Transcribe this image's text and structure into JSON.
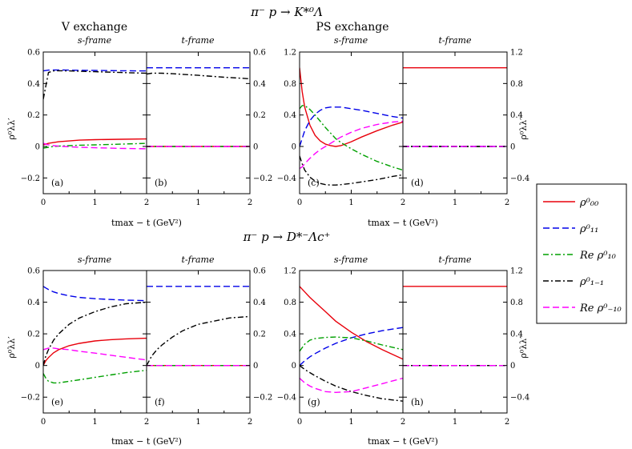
{
  "figure": {
    "title_top": "π⁻ p → K*⁰Λ",
    "title_bottom": "π⁻ p → D*⁻Λc⁺",
    "section_left": "V exchange",
    "section_right": "PS exchange",
    "frame_s": "s-frame",
    "frame_t": "t-frame",
    "ylabel": "ρ⁰λλ′",
    "xlabel": "tmax − t (GeV²)"
  },
  "legend": {
    "items": [
      {
        "label": "ρ⁰₀₀",
        "color": "#e8000b",
        "dash": "solid"
      },
      {
        "label": "ρ⁰₁₁",
        "color": "#0000e8",
        "dash": "dash"
      },
      {
        "label": "Re ρ⁰₁₀",
        "color": "#00a000",
        "dash": "dashdot"
      },
      {
        "label": "ρ⁰₁₋₁",
        "color": "#000000",
        "dash": "dashdot"
      },
      {
        "label": "Re ρ⁰₋₁₀",
        "color": "#ff00ff",
        "dash": "dash"
      }
    ]
  },
  "chart_data": [
    {
      "panel": "(a)",
      "frame": "s-frame",
      "xlim": [
        0,
        2
      ],
      "ylim": [
        -0.3,
        0.6
      ],
      "xticks": [
        0,
        1,
        2
      ],
      "yticks": [
        -0.2,
        0,
        0.2,
        0.4,
        0.6
      ],
      "x": [
        0,
        0.1,
        0.2,
        0.3,
        0.5,
        0.7,
        1.0,
        1.5,
        2.0
      ],
      "series": [
        {
          "values": [
            0.01,
            0.02,
            0.025,
            0.03,
            0.035,
            0.04,
            0.043,
            0.046,
            0.048
          ]
        },
        {
          "values": [
            0.48,
            0.485,
            0.486,
            0.486,
            0.485,
            0.484,
            0.483,
            0.481,
            0.48
          ]
        },
        {
          "values": [
            -0.01,
            -0.005,
            0.0,
            0.002,
            0.005,
            0.008,
            0.01,
            0.015,
            0.02
          ]
        },
        {
          "values": [
            0.3,
            0.47,
            0.48,
            0.481,
            0.48,
            0.478,
            0.475,
            0.47,
            0.465
          ]
        },
        {
          "values": [
            0.02,
            0.01,
            0.005,
            0.002,
            -0.002,
            -0.005,
            -0.008,
            -0.012,
            -0.015
          ]
        }
      ]
    },
    {
      "panel": "(b)",
      "frame": "t-frame",
      "xlim": [
        0,
        2
      ],
      "ylim": [
        -0.3,
        0.6
      ],
      "xticks": [
        1,
        2
      ],
      "yticks": [
        -0.2,
        0,
        0.2,
        0.4,
        0.6
      ],
      "x": [
        0,
        0.1,
        0.2,
        0.3,
        0.5,
        0.7,
        1.0,
        1.5,
        2.0
      ],
      "series": [
        {
          "values": [
            0,
            0,
            0,
            0,
            0,
            0,
            0,
            0,
            0
          ]
        },
        {
          "values": [
            0.5,
            0.5,
            0.5,
            0.5,
            0.5,
            0.5,
            0.5,
            0.5,
            0.5
          ]
        },
        {
          "values": [
            0,
            0,
            0,
            0,
            0,
            0,
            0,
            0,
            0
          ]
        },
        {
          "values": [
            0.46,
            0.465,
            0.466,
            0.465,
            0.462,
            0.458,
            0.452,
            0.44,
            0.43
          ]
        },
        {
          "values": [
            0,
            0,
            0,
            0,
            0,
            0,
            0,
            0,
            0
          ]
        }
      ]
    },
    {
      "panel": "(c)",
      "frame": "s-frame",
      "xlim": [
        0,
        2
      ],
      "ylim": [
        -0.6,
        1.2
      ],
      "xticks": [
        0,
        1,
        2
      ],
      "yticks": [
        -0.4,
        0,
        0.4,
        0.8,
        1.2
      ],
      "x": [
        0,
        0.05,
        0.1,
        0.2,
        0.3,
        0.4,
        0.5,
        0.6,
        0.7,
        0.8,
        1.0,
        1.2,
        1.5,
        1.8,
        2.0
      ],
      "series": [
        {
          "values": [
            1.0,
            0.7,
            0.5,
            0.27,
            0.14,
            0.07,
            0.03,
            0.01,
            0.0,
            0.01,
            0.06,
            0.12,
            0.2,
            0.27,
            0.31
          ]
        },
        {
          "values": [
            0.0,
            0.1,
            0.2,
            0.33,
            0.41,
            0.46,
            0.49,
            0.5,
            0.5,
            0.5,
            0.48,
            0.46,
            0.42,
            0.38,
            0.36
          ]
        },
        {
          "values": [
            0.48,
            0.52,
            0.52,
            0.47,
            0.4,
            0.32,
            0.24,
            0.17,
            0.1,
            0.05,
            -0.03,
            -0.1,
            -0.19,
            -0.26,
            -0.3
          ]
        },
        {
          "values": [
            -0.12,
            -0.22,
            -0.3,
            -0.39,
            -0.44,
            -0.47,
            -0.485,
            -0.49,
            -0.49,
            -0.485,
            -0.47,
            -0.45,
            -0.42,
            -0.38,
            -0.36
          ]
        },
        {
          "values": [
            -0.28,
            -0.26,
            -0.22,
            -0.15,
            -0.09,
            -0.04,
            0.0,
            0.04,
            0.08,
            0.12,
            0.18,
            0.23,
            0.28,
            0.31,
            0.32
          ]
        }
      ]
    },
    {
      "panel": "(d)",
      "frame": "t-frame",
      "xlim": [
        0,
        2
      ],
      "ylim": [
        -0.6,
        1.2
      ],
      "xticks": [
        1,
        2
      ],
      "yticks": [
        -0.4,
        0,
        0.4,
        0.8,
        1.2
      ],
      "x": [
        0,
        0.5,
        1.0,
        1.5,
        2.0
      ],
      "series": [
        {
          "values": [
            1,
            1,
            1,
            1,
            1
          ]
        },
        {
          "values": [
            0,
            0,
            0,
            0,
            0
          ]
        },
        {
          "values": [
            0,
            0,
            0,
            0,
            0
          ]
        },
        {
          "values": [
            0,
            0,
            0,
            0,
            0
          ]
        },
        {
          "values": [
            0,
            0,
            0,
            0,
            0
          ]
        }
      ]
    },
    {
      "panel": "(e)",
      "frame": "s-frame",
      "xlim": [
        0,
        2
      ],
      "ylim": [
        -0.3,
        0.6
      ],
      "xticks": [
        0,
        1,
        2
      ],
      "yticks": [
        -0.2,
        0,
        0.2,
        0.4,
        0.6
      ],
      "x": [
        0,
        0.05,
        0.1,
        0.2,
        0.3,
        0.5,
        0.7,
        1.0,
        1.3,
        1.6,
        2.0
      ],
      "series": [
        {
          "values": [
            0.0,
            0.03,
            0.05,
            0.08,
            0.1,
            0.125,
            0.14,
            0.155,
            0.163,
            0.168,
            0.172
          ]
        },
        {
          "values": [
            0.5,
            0.49,
            0.48,
            0.465,
            0.455,
            0.44,
            0.43,
            0.422,
            0.417,
            0.413,
            0.41
          ]
        },
        {
          "values": [
            -0.05,
            -0.08,
            -0.1,
            -0.11,
            -0.11,
            -0.1,
            -0.09,
            -0.075,
            -0.06,
            -0.045,
            -0.03
          ]
        },
        {
          "values": [
            0.0,
            0.06,
            0.1,
            0.16,
            0.2,
            0.26,
            0.3,
            0.34,
            0.37,
            0.39,
            0.4
          ]
        },
        {
          "values": [
            0.1,
            0.105,
            0.11,
            0.11,
            0.105,
            0.1,
            0.09,
            0.078,
            0.065,
            0.052,
            0.035
          ]
        }
      ]
    },
    {
      "panel": "(f)",
      "frame": "t-frame",
      "xlim": [
        0,
        2
      ],
      "ylim": [
        -0.3,
        0.6
      ],
      "xticks": [
        1,
        2
      ],
      "yticks": [
        -0.2,
        0,
        0.2,
        0.4,
        0.6
      ],
      "x": [
        0,
        0.1,
        0.2,
        0.3,
        0.5,
        0.7,
        1.0,
        1.3,
        1.6,
        2.0
      ],
      "series": [
        {
          "values": [
            0,
            0,
            0,
            0,
            0,
            0,
            0,
            0,
            0,
            0
          ]
        },
        {
          "values": [
            0.5,
            0.5,
            0.5,
            0.5,
            0.5,
            0.5,
            0.5,
            0.5,
            0.5,
            0.5
          ]
        },
        {
          "values": [
            0,
            0,
            0,
            0,
            0,
            0,
            0,
            0,
            0,
            0
          ]
        },
        {
          "values": [
            0.0,
            0.06,
            0.1,
            0.13,
            0.18,
            0.22,
            0.26,
            0.28,
            0.3,
            0.31
          ]
        },
        {
          "values": [
            0,
            0,
            0,
            0,
            0,
            0,
            0,
            0,
            0,
            0
          ]
        }
      ]
    },
    {
      "panel": "(g)",
      "frame": "s-frame",
      "xlim": [
        0,
        2
      ],
      "ylim": [
        -0.6,
        1.2
      ],
      "xticks": [
        0,
        1,
        2
      ],
      "yticks": [
        -0.4,
        0,
        0.4,
        0.8,
        1.2
      ],
      "x": [
        0,
        0.1,
        0.2,
        0.3,
        0.5,
        0.7,
        1.0,
        1.3,
        1.6,
        2.0
      ],
      "series": [
        {
          "values": [
            1.0,
            0.93,
            0.86,
            0.8,
            0.68,
            0.56,
            0.42,
            0.3,
            0.2,
            0.08
          ]
        },
        {
          "values": [
            0.0,
            0.06,
            0.11,
            0.15,
            0.22,
            0.28,
            0.35,
            0.4,
            0.44,
            0.48
          ]
        },
        {
          "values": [
            0.18,
            0.27,
            0.32,
            0.34,
            0.355,
            0.36,
            0.35,
            0.31,
            0.26,
            0.2
          ]
        },
        {
          "values": [
            0.0,
            -0.05,
            -0.09,
            -0.13,
            -0.2,
            -0.26,
            -0.33,
            -0.38,
            -0.42,
            -0.45
          ]
        },
        {
          "values": [
            -0.16,
            -0.22,
            -0.26,
            -0.29,
            -0.33,
            -0.34,
            -0.33,
            -0.28,
            -0.23,
            -0.16
          ]
        }
      ]
    },
    {
      "panel": "(h)",
      "frame": "t-frame",
      "xlim": [
        0,
        2
      ],
      "ylim": [
        -0.6,
        1.2
      ],
      "xticks": [
        1,
        2
      ],
      "yticks": [
        -0.4,
        0,
        0.4,
        0.8,
        1.2
      ],
      "x": [
        0,
        0.5,
        1.0,
        1.5,
        2.0
      ],
      "series": [
        {
          "values": [
            1,
            1,
            1,
            1,
            1
          ]
        },
        {
          "values": [
            0,
            0,
            0,
            0,
            0
          ]
        },
        {
          "values": [
            0,
            0,
            0,
            0,
            0
          ]
        },
        {
          "values": [
            0,
            0,
            0,
            0,
            0
          ]
        },
        {
          "values": [
            0,
            0,
            0,
            0,
            0
          ]
        }
      ]
    }
  ]
}
